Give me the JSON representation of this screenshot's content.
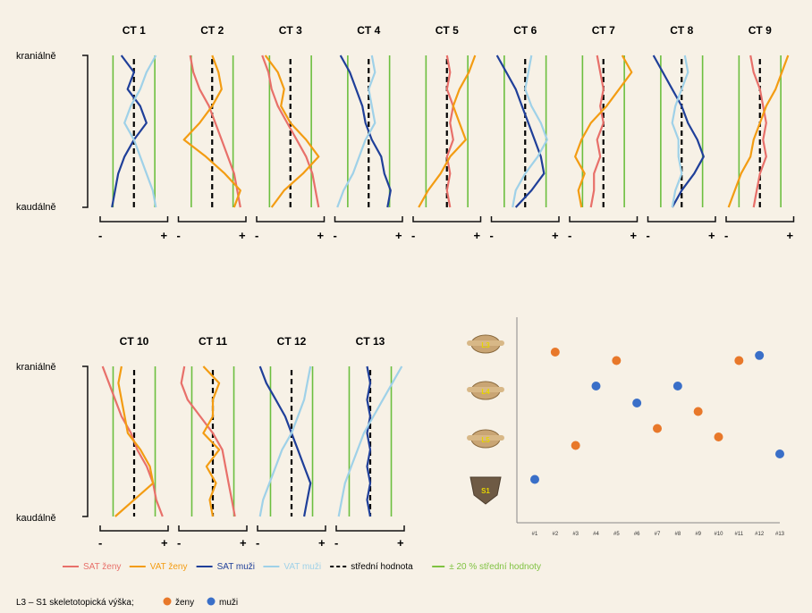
{
  "labels": {
    "cranial": "kraniálně",
    "caudal": "kaudálně",
    "minus": "-",
    "plus": "+"
  },
  "legend": {
    "items": [
      {
        "key": "sat_f",
        "label": "SAT ženy",
        "color": "#e8706a",
        "dash": false
      },
      {
        "key": "vat_f",
        "label": "VAT ženy",
        "color": "#f39c12",
        "dash": false
      },
      {
        "key": "sat_m",
        "label": "SAT muži",
        "color": "#1f3f99",
        "dash": false
      },
      {
        "key": "vat_m",
        "label": "VAT muži",
        "color": "#9fd1e8",
        "dash": false
      },
      {
        "key": "mean",
        "label": "střední hodnota",
        "color": "#000000",
        "dash": true
      },
      {
        "key": "band",
        "label": "± 20 % střední hodnoty",
        "color": "#7fc241",
        "dash": false
      }
    ],
    "scatter_caption": "L3 – S1 skeletotopická výška;",
    "scatter_women": "ženy",
    "scatter_men": "muži"
  },
  "colors": {
    "sat_f": "#e8706a",
    "vat_f": "#f39c12",
    "sat_m": "#1f3f99",
    "vat_m": "#9fd1e8",
    "band": "#6cbf3f",
    "mean": "#000000",
    "women_dot": "#e8782a",
    "men_dot": "#3a6fc8"
  },
  "chart_data": [
    {
      "type": "line",
      "title": "CT 1",
      "series": [
        {
          "name": "SAT muži",
          "values": [
            0.3,
            0.5,
            0.4,
            0.6,
            0.7,
            0.5,
            0.35,
            0.25,
            0.2,
            0.15
          ]
        },
        {
          "name": "VAT muži",
          "values": [
            0.85,
            0.7,
            0.6,
            0.45,
            0.35,
            0.5,
            0.6,
            0.7,
            0.8,
            0.85
          ]
        }
      ]
    },
    {
      "type": "line",
      "title": "CT 2",
      "series": [
        {
          "name": "SAT ženy",
          "values": [
            0.15,
            0.2,
            0.3,
            0.45,
            0.55,
            0.65,
            0.75,
            0.85,
            0.9,
            0.95
          ]
        },
        {
          "name": "VAT ženy",
          "values": [
            0.5,
            0.6,
            0.65,
            0.5,
            0.3,
            0.05,
            0.4,
            0.7,
            0.95,
            0.85
          ]
        }
      ]
    },
    {
      "type": "line",
      "title": "CT 3",
      "series": [
        {
          "name": "SAT ženy",
          "values": [
            0.05,
            0.15,
            0.2,
            0.3,
            0.45,
            0.6,
            0.75,
            0.85,
            0.9,
            0.95
          ]
        },
        {
          "name": "VAT ženy",
          "values": [
            0.1,
            0.3,
            0.4,
            0.35,
            0.5,
            0.75,
            0.95,
            0.7,
            0.4,
            0.2
          ]
        }
      ]
    },
    {
      "type": "line",
      "title": "CT 4",
      "series": [
        {
          "name": "SAT muži",
          "values": [
            0.05,
            0.2,
            0.3,
            0.4,
            0.45,
            0.55,
            0.7,
            0.75,
            0.85,
            0.8
          ]
        },
        {
          "name": "VAT muži",
          "values": [
            0.55,
            0.6,
            0.5,
            0.55,
            0.6,
            0.45,
            0.35,
            0.25,
            0.1,
            0.0
          ]
        }
      ]
    },
    {
      "type": "line",
      "title": "CT 5",
      "series": [
        {
          "name": "SAT ženy",
          "values": [
            0.5,
            0.55,
            0.5,
            0.6,
            0.55,
            0.6,
            0.5,
            0.55,
            0.5,
            0.55
          ]
        },
        {
          "name": "VAT ženy",
          "values": [
            0.95,
            0.85,
            0.7,
            0.6,
            0.7,
            0.8,
            0.55,
            0.4,
            0.2,
            0.05
          ]
        }
      ]
    },
    {
      "type": "line",
      "title": "CT 6",
      "series": [
        {
          "name": "SAT muži",
          "values": [
            0.05,
            0.2,
            0.35,
            0.45,
            0.55,
            0.65,
            0.75,
            0.8,
            0.6,
            0.35
          ]
        },
        {
          "name": "VAT muži",
          "values": [
            0.6,
            0.55,
            0.5,
            0.6,
            0.75,
            0.85,
            0.7,
            0.5,
            0.35,
            0.3
          ]
        }
      ]
    },
    {
      "type": "line",
      "title": "CT 7",
      "series": [
        {
          "name": "SAT ženy",
          "values": [
            0.4,
            0.45,
            0.5,
            0.45,
            0.5,
            0.4,
            0.45,
            0.35,
            0.35,
            0.3
          ]
        },
        {
          "name": "VAT ženy",
          "values": [
            0.8,
            0.95,
            0.75,
            0.55,
            0.3,
            0.15,
            0.05,
            0.2,
            0.1,
            0.15
          ]
        }
      ]
    },
    {
      "type": "line",
      "title": "CT 8",
      "series": [
        {
          "name": "SAT muži",
          "values": [
            0.05,
            0.2,
            0.35,
            0.5,
            0.6,
            0.75,
            0.85,
            0.7,
            0.5,
            0.35
          ]
        },
        {
          "name": "VAT muži",
          "values": [
            0.55,
            0.6,
            0.5,
            0.4,
            0.35,
            0.45,
            0.45,
            0.5,
            0.4,
            0.35
          ]
        }
      ]
    },
    {
      "type": "line",
      "title": "CT 9",
      "series": [
        {
          "name": "SAT ženy",
          "values": [
            0.35,
            0.4,
            0.5,
            0.55,
            0.6,
            0.55,
            0.6,
            0.5,
            0.45,
            0.4
          ]
        },
        {
          "name": "VAT ženy",
          "values": [
            0.95,
            0.85,
            0.75,
            0.6,
            0.5,
            0.4,
            0.35,
            0.2,
            0.1,
            0.0
          ]
        }
      ]
    },
    {
      "type": "line",
      "title": "CT 10",
      "series": [
        {
          "name": "SAT ženy",
          "values": [
            0.0,
            0.1,
            0.2,
            0.3,
            0.45,
            0.55,
            0.7,
            0.8,
            0.85,
            0.95
          ]
        },
        {
          "name": "VAT ženy",
          "values": [
            0.3,
            0.25,
            0.3,
            0.35,
            0.4,
            0.6,
            0.75,
            0.8,
            0.5,
            0.2
          ]
        }
      ]
    },
    {
      "type": "line",
      "title": "CT 11",
      "series": [
        {
          "name": "SAT ženy",
          "values": [
            0.05,
            0.0,
            0.1,
            0.3,
            0.5,
            0.65,
            0.7,
            0.75,
            0.8,
            0.85
          ]
        },
        {
          "name": "VAT ženy",
          "values": [
            0.35,
            0.6,
            0.5,
            0.5,
            0.35,
            0.6,
            0.4,
            0.55,
            0.45,
            0.5
          ]
        }
      ]
    },
    {
      "type": "line",
      "title": "CT 12",
      "series": [
        {
          "name": "SAT muži",
          "values": [
            0.0,
            0.1,
            0.25,
            0.4,
            0.5,
            0.6,
            0.7,
            0.8,
            0.75,
            0.7
          ]
        },
        {
          "name": "VAT muži",
          "values": [
            0.8,
            0.75,
            0.7,
            0.6,
            0.5,
            0.35,
            0.25,
            0.15,
            0.05,
            0.0
          ]
        }
      ]
    },
    {
      "type": "line",
      "title": "CT 13",
      "series": [
        {
          "name": "SAT muži",
          "values": [
            0.45,
            0.5,
            0.45,
            0.5,
            0.45,
            0.5,
            0.45,
            0.5,
            0.45,
            0.5
          ]
        },
        {
          "name": "VAT muži",
          "values": [
            1.0,
            0.85,
            0.7,
            0.55,
            0.4,
            0.3,
            0.2,
            0.1,
            0.05,
            0.0
          ]
        }
      ]
    },
    {
      "type": "scatter",
      "vertebrae": [
        "L3",
        "L4",
        "L5",
        "S1"
      ],
      "categories": [
        "#1",
        "#2",
        "#3",
        "#4",
        "#5",
        "#6",
        "#7",
        "#8",
        "#9",
        "#10",
        "#11",
        "#12",
        "#13"
      ],
      "series": [
        {
          "name": "ženy",
          "points": [
            [
              2,
              0.9
            ],
            [
              3,
              0.35
            ],
            [
              5,
              0.85
            ],
            [
              7,
              0.45
            ],
            [
              9,
              0.55
            ],
            [
              10,
              0.4
            ],
            [
              11,
              0.85
            ]
          ]
        },
        {
          "name": "muži",
          "points": [
            [
              1,
              0.15
            ],
            [
              4,
              0.7
            ],
            [
              6,
              0.6
            ],
            [
              8,
              0.7
            ],
            [
              12,
              0.88
            ],
            [
              13,
              0.3
            ]
          ]
        }
      ]
    }
  ]
}
